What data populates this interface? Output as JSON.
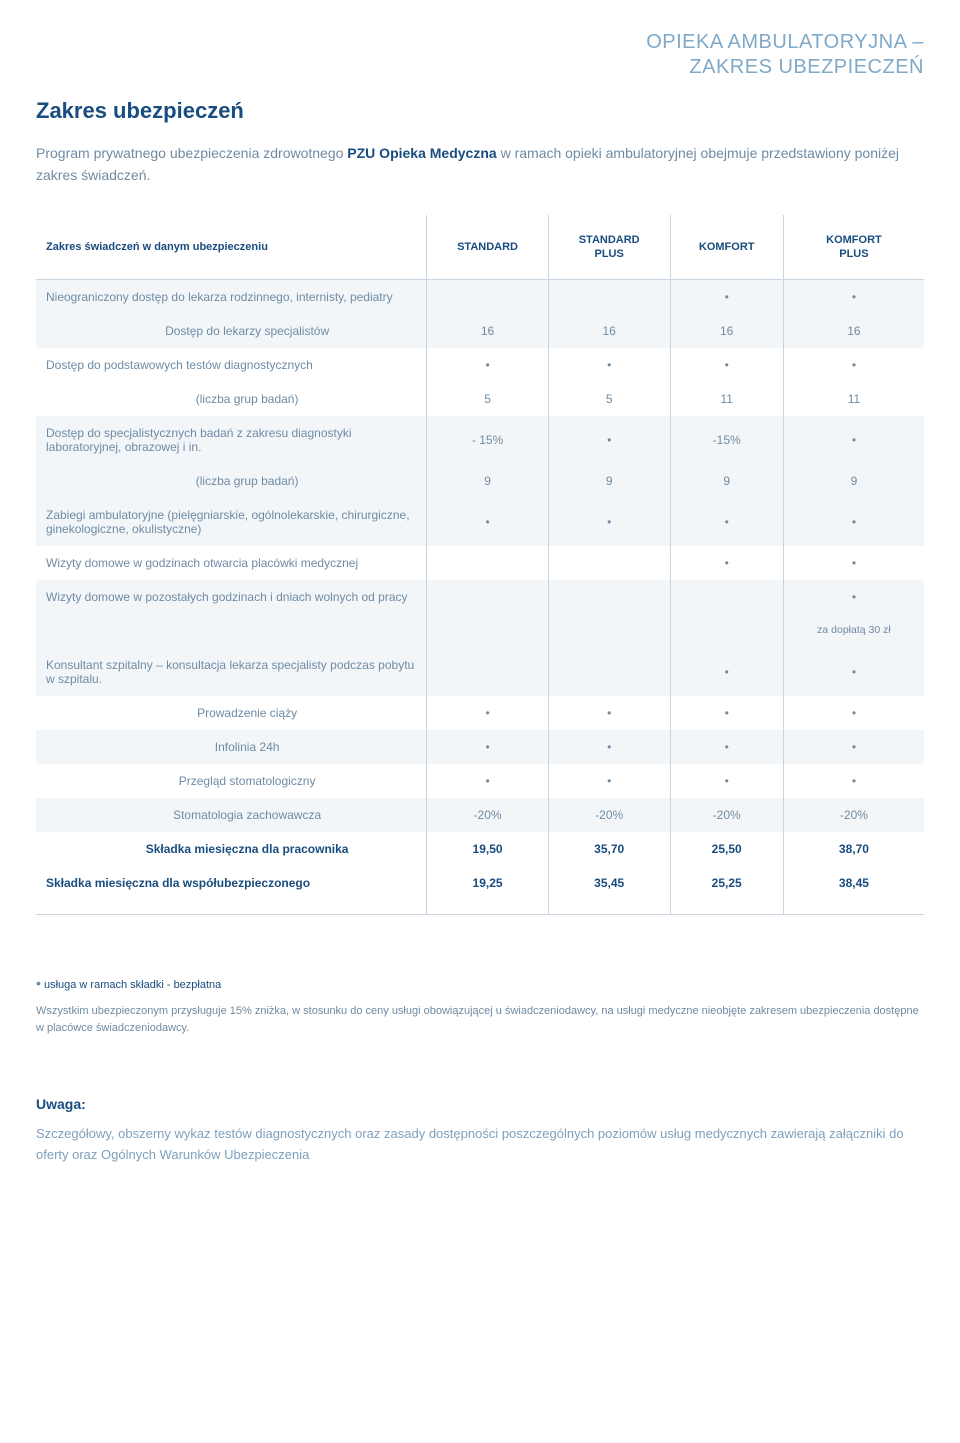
{
  "header": {
    "line1": "OPIEKA AMBULATORYJNA –",
    "line2": "ZAKRES UBEZPIECZEŃ"
  },
  "title": "Zakres ubezpieczeń",
  "intro_pre": "Program prywatnego ubezpieczenia zdrowotnego ",
  "intro_bold": "PZU Opieka Medyczna",
  "intro_post": " w ramach opieki ambulatoryjnej obejmuje przedstawiony poniżej zakres świadczeń.",
  "columns": {
    "label": "Zakres świadczeń w danym ubezpieczeniu",
    "c1": "STANDARD",
    "c2a": "STANDARD",
    "c2b": "PLUS",
    "c3": "KOMFORT",
    "c4a": "KOMFORT",
    "c4b": "PLUS"
  },
  "dot": "•",
  "rows": {
    "r1": {
      "label": "Nieograniczony dostęp do lekarza rodzinnego, internisty, pediatry",
      "v": [
        "",
        "",
        "•",
        "•"
      ]
    },
    "r2": {
      "label": "Dostęp do lekarzy specjalistów",
      "v": [
        "16",
        "16",
        "16",
        "16"
      ]
    },
    "r3": {
      "label": "Dostęp do podstawowych testów diagnostycznych",
      "v": [
        "•",
        "•",
        "•",
        "•"
      ]
    },
    "r4": {
      "label": "(liczba grup badań)",
      "v": [
        "5",
        "5",
        "11",
        "11"
      ]
    },
    "r5": {
      "label": "Dostęp do specjalistycznych badań z zakresu diagnostyki laboratoryjnej, obrazowej i in.",
      "v": [
        "- 15%",
        "•",
        "-15%",
        "•"
      ]
    },
    "r6": {
      "label": "(liczba grup badań)",
      "v": [
        "9",
        "9",
        "9",
        "9"
      ]
    },
    "r7": {
      "label": "Zabiegi ambulatoryjne (pielęgniarskie, ogólnolekarskie, chirurgiczne, ginekologiczne, okulistyczne)",
      "v": [
        "•",
        "•",
        "•",
        "•"
      ]
    },
    "r8": {
      "label": "Wizyty domowe w godzinach otwarcia placówki medycznej",
      "v": [
        "",
        "",
        "•",
        "•"
      ]
    },
    "r9": {
      "label": "Wizyty domowe w pozostałych godzinach i dniach wolnych od pracy",
      "v": [
        "",
        "",
        "",
        "•"
      ],
      "note": "za dopłatą 30 zł"
    },
    "r10": {
      "label": "Konsultant szpitalny – konsultacja lekarza specjalisty podczas pobytu w szpitalu.",
      "v": [
        "",
        "",
        "•",
        "•"
      ]
    },
    "r11": {
      "label": "Prowadzenie ciąży",
      "v": [
        "•",
        "•",
        "•",
        "•"
      ]
    },
    "r12": {
      "label": "Infolinia 24h",
      "v": [
        "•",
        "•",
        "•",
        "•"
      ]
    },
    "r13": {
      "label": "Przegląd stomatologiczny",
      "v": [
        "•",
        "•",
        "•",
        "•"
      ]
    },
    "r14": {
      "label": "Stomatologia zachowawcza",
      "v": [
        "-20%",
        "-20%",
        "-20%",
        "-20%"
      ]
    },
    "r15": {
      "label": "Składka miesięczna dla pracownika",
      "v": [
        "19,50",
        "35,70",
        "25,50",
        "38,70"
      ]
    },
    "r16": {
      "label": "Składka miesięczna dla współubezpieczonego",
      "v": [
        "19,25",
        "35,45",
        "25,25",
        "38,45"
      ]
    }
  },
  "footnote_bullet": "•",
  "footnote_label": " usługa w ramach składki - bezpłatna",
  "footnote_desc": "Wszystkim ubezpieczonym przysługuje 15% zniżka, w stosunku do ceny usługi obowiązującej u świadczeniodawcy, na usługi medyczne nieobjęte zakresem ubezpieczenia dostępne w placówce świadczeniodawcy.",
  "uwaga_h": "Uwaga:",
  "uwaga_p": "Szczegółowy, obszerny wykaz testów diagnostycznych oraz zasady dostępności poszczególnych poziomów usług medycznych zawierają załączniki do oferty oraz Ogólnych Warunków Ubezpieczenia"
}
